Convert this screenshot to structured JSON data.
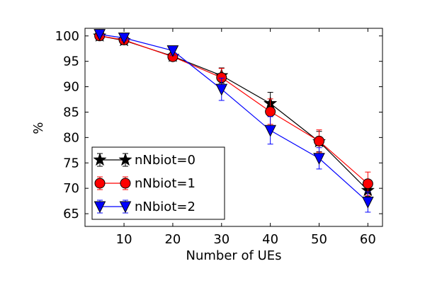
{
  "chart_data": {
    "type": "line",
    "xlabel": "Number of UEs",
    "ylabel": "%",
    "xlim": [
      2,
      63
    ],
    "ylim": [
      62.5,
      101.5
    ],
    "xticks": [
      10,
      20,
      30,
      40,
      50,
      60
    ],
    "yticks": [
      65,
      70,
      75,
      80,
      85,
      90,
      95,
      100
    ],
    "x": [
      5,
      10,
      20,
      30,
      40,
      50,
      60
    ],
    "grid": false,
    "legend": "lower-left",
    "series": [
      {
        "name": "nNbiot=0",
        "color": "#000000",
        "marker": "star",
        "values": [
          100.0,
          99.1,
          96.0,
          92.2,
          86.7,
          79.2,
          69.6
        ],
        "errors": [
          0.3,
          0.4,
          0.6,
          1.5,
          2.2,
          2.0,
          1.2
        ]
      },
      {
        "name": "nNbiot=1",
        "color": "#ff0000",
        "marker": "circle",
        "values": [
          100.0,
          99.2,
          95.9,
          91.8,
          85.1,
          79.3,
          70.9
        ],
        "errors": [
          0.3,
          0.4,
          0.6,
          1.8,
          2.5,
          2.2,
          2.3
        ]
      },
      {
        "name": "nNbiot=2",
        "color": "#0000ff",
        "marker": "triangle-down",
        "values": [
          100.3,
          99.6,
          97.1,
          89.5,
          81.4,
          75.9,
          67.3
        ],
        "errors": [
          0.3,
          0.5,
          0.9,
          2.2,
          2.7,
          2.1,
          2.0
        ]
      }
    ]
  }
}
